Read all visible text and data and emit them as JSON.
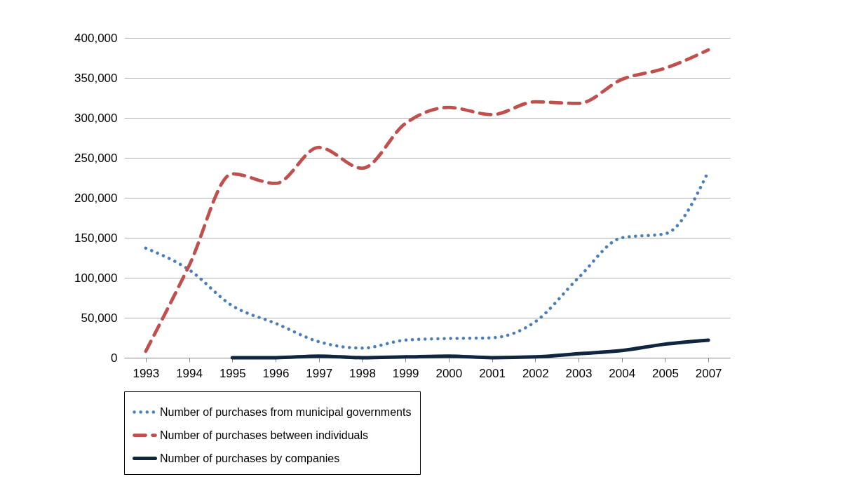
{
  "chart_data": {
    "type": "line",
    "categories": [
      "1993",
      "1994",
      "1995",
      "1996",
      "1997",
      "1998",
      "1999",
      "2000",
      "2001",
      "2002",
      "2003",
      "2004",
      "2005",
      "2007"
    ],
    "series": [
      {
        "name": "Number of purchases from municipal governments",
        "color": "#4a7ebb",
        "line_style": "dotted",
        "values": [
          137000,
          110000,
          65000,
          43000,
          20000,
          12000,
          22000,
          24000,
          25000,
          45000,
          100000,
          150000,
          155000,
          233000
        ]
      },
      {
        "name": "Number of purchases between individuals",
        "color": "#c0504d",
        "line_style": "dashed",
        "values": [
          8000,
          115000,
          230000,
          218000,
          263000,
          237000,
          293000,
          313000,
          304000,
          320000,
          318000,
          348000,
          362000,
          385000
        ]
      },
      {
        "name": "Number of purchases by companies",
        "color": "#10253f",
        "line_style": "solid",
        "values": [
          null,
          null,
          0,
          0,
          2000,
          0,
          1000,
          2000,
          0,
          1000,
          5000,
          9000,
          17000,
          22000
        ]
      }
    ],
    "ylim": [
      0,
      400000
    ],
    "yticks": [
      0,
      {
        "value": 50000,
        "label": "50,000"
      },
      {
        "value": 100000,
        "label": "100,000"
      },
      {
        "value": 150000,
        "label": "150,000"
      },
      {
        "value": 200000,
        "label": "200,000"
      },
      {
        "value": 250000,
        "label": "250,000"
      },
      {
        "value": 300000,
        "label": "300,000"
      },
      {
        "value": 350000,
        "label": "350,000"
      },
      {
        "value": 400000,
        "label": "400,000"
      }
    ],
    "grid": "y",
    "legend": "bottom",
    "marker": "none"
  }
}
